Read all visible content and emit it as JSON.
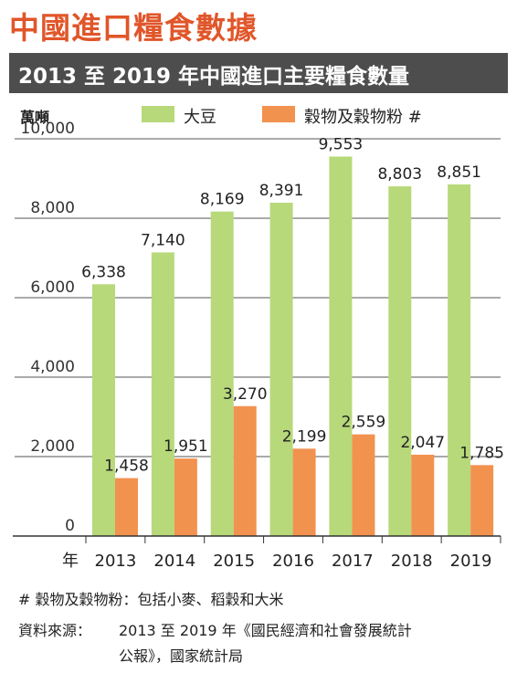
{
  "page_title": "中國進口糧食數據",
  "subtitle": "2013 至 2019 年中國進口主要糧食數量",
  "unit": "萬噸",
  "footnote": "# 穀物及穀物粉：包括小麥、稻穀和大米",
  "source_label": "資料來源：",
  "source_line1": "2013 至 2019 年《國民經濟和社會發展統計",
  "source_line2": "公報》，國家統計局",
  "chart_data": {
    "type": "bar",
    "title": "2013 至 2019 年中國進口主要糧食數量",
    "ylabel": "萬噸",
    "xlabel": "年",
    "ylim": [
      0,
      10000
    ],
    "yticks": [
      0,
      2000,
      4000,
      6000,
      8000,
      10000
    ],
    "ytick_labels": [
      "0",
      "2,000",
      "4,000",
      "6,000",
      "8,000",
      "10,000"
    ],
    "grid": true,
    "legend_position": "top",
    "categories": [
      "2013",
      "2014",
      "2015",
      "2016",
      "2017",
      "2018",
      "2019"
    ],
    "series": [
      {
        "name": "大豆",
        "color": "#b7d97a",
        "values": [
          6338,
          7140,
          8169,
          8391,
          9553,
          8803,
          8851
        ],
        "labels": [
          "6,338",
          "7,140",
          "8,169",
          "8,391",
          "9,553",
          "8,803",
          "8,851"
        ]
      },
      {
        "name": "穀物及穀物粉 #",
        "color": "#f2924f",
        "values": [
          1458,
          1951,
          3270,
          2199,
          2559,
          2047,
          1785
        ],
        "labels": [
          "1,458",
          "1,951",
          "3,270",
          "2,199",
          "2,559",
          "2,047",
          "1,785"
        ]
      }
    ]
  }
}
